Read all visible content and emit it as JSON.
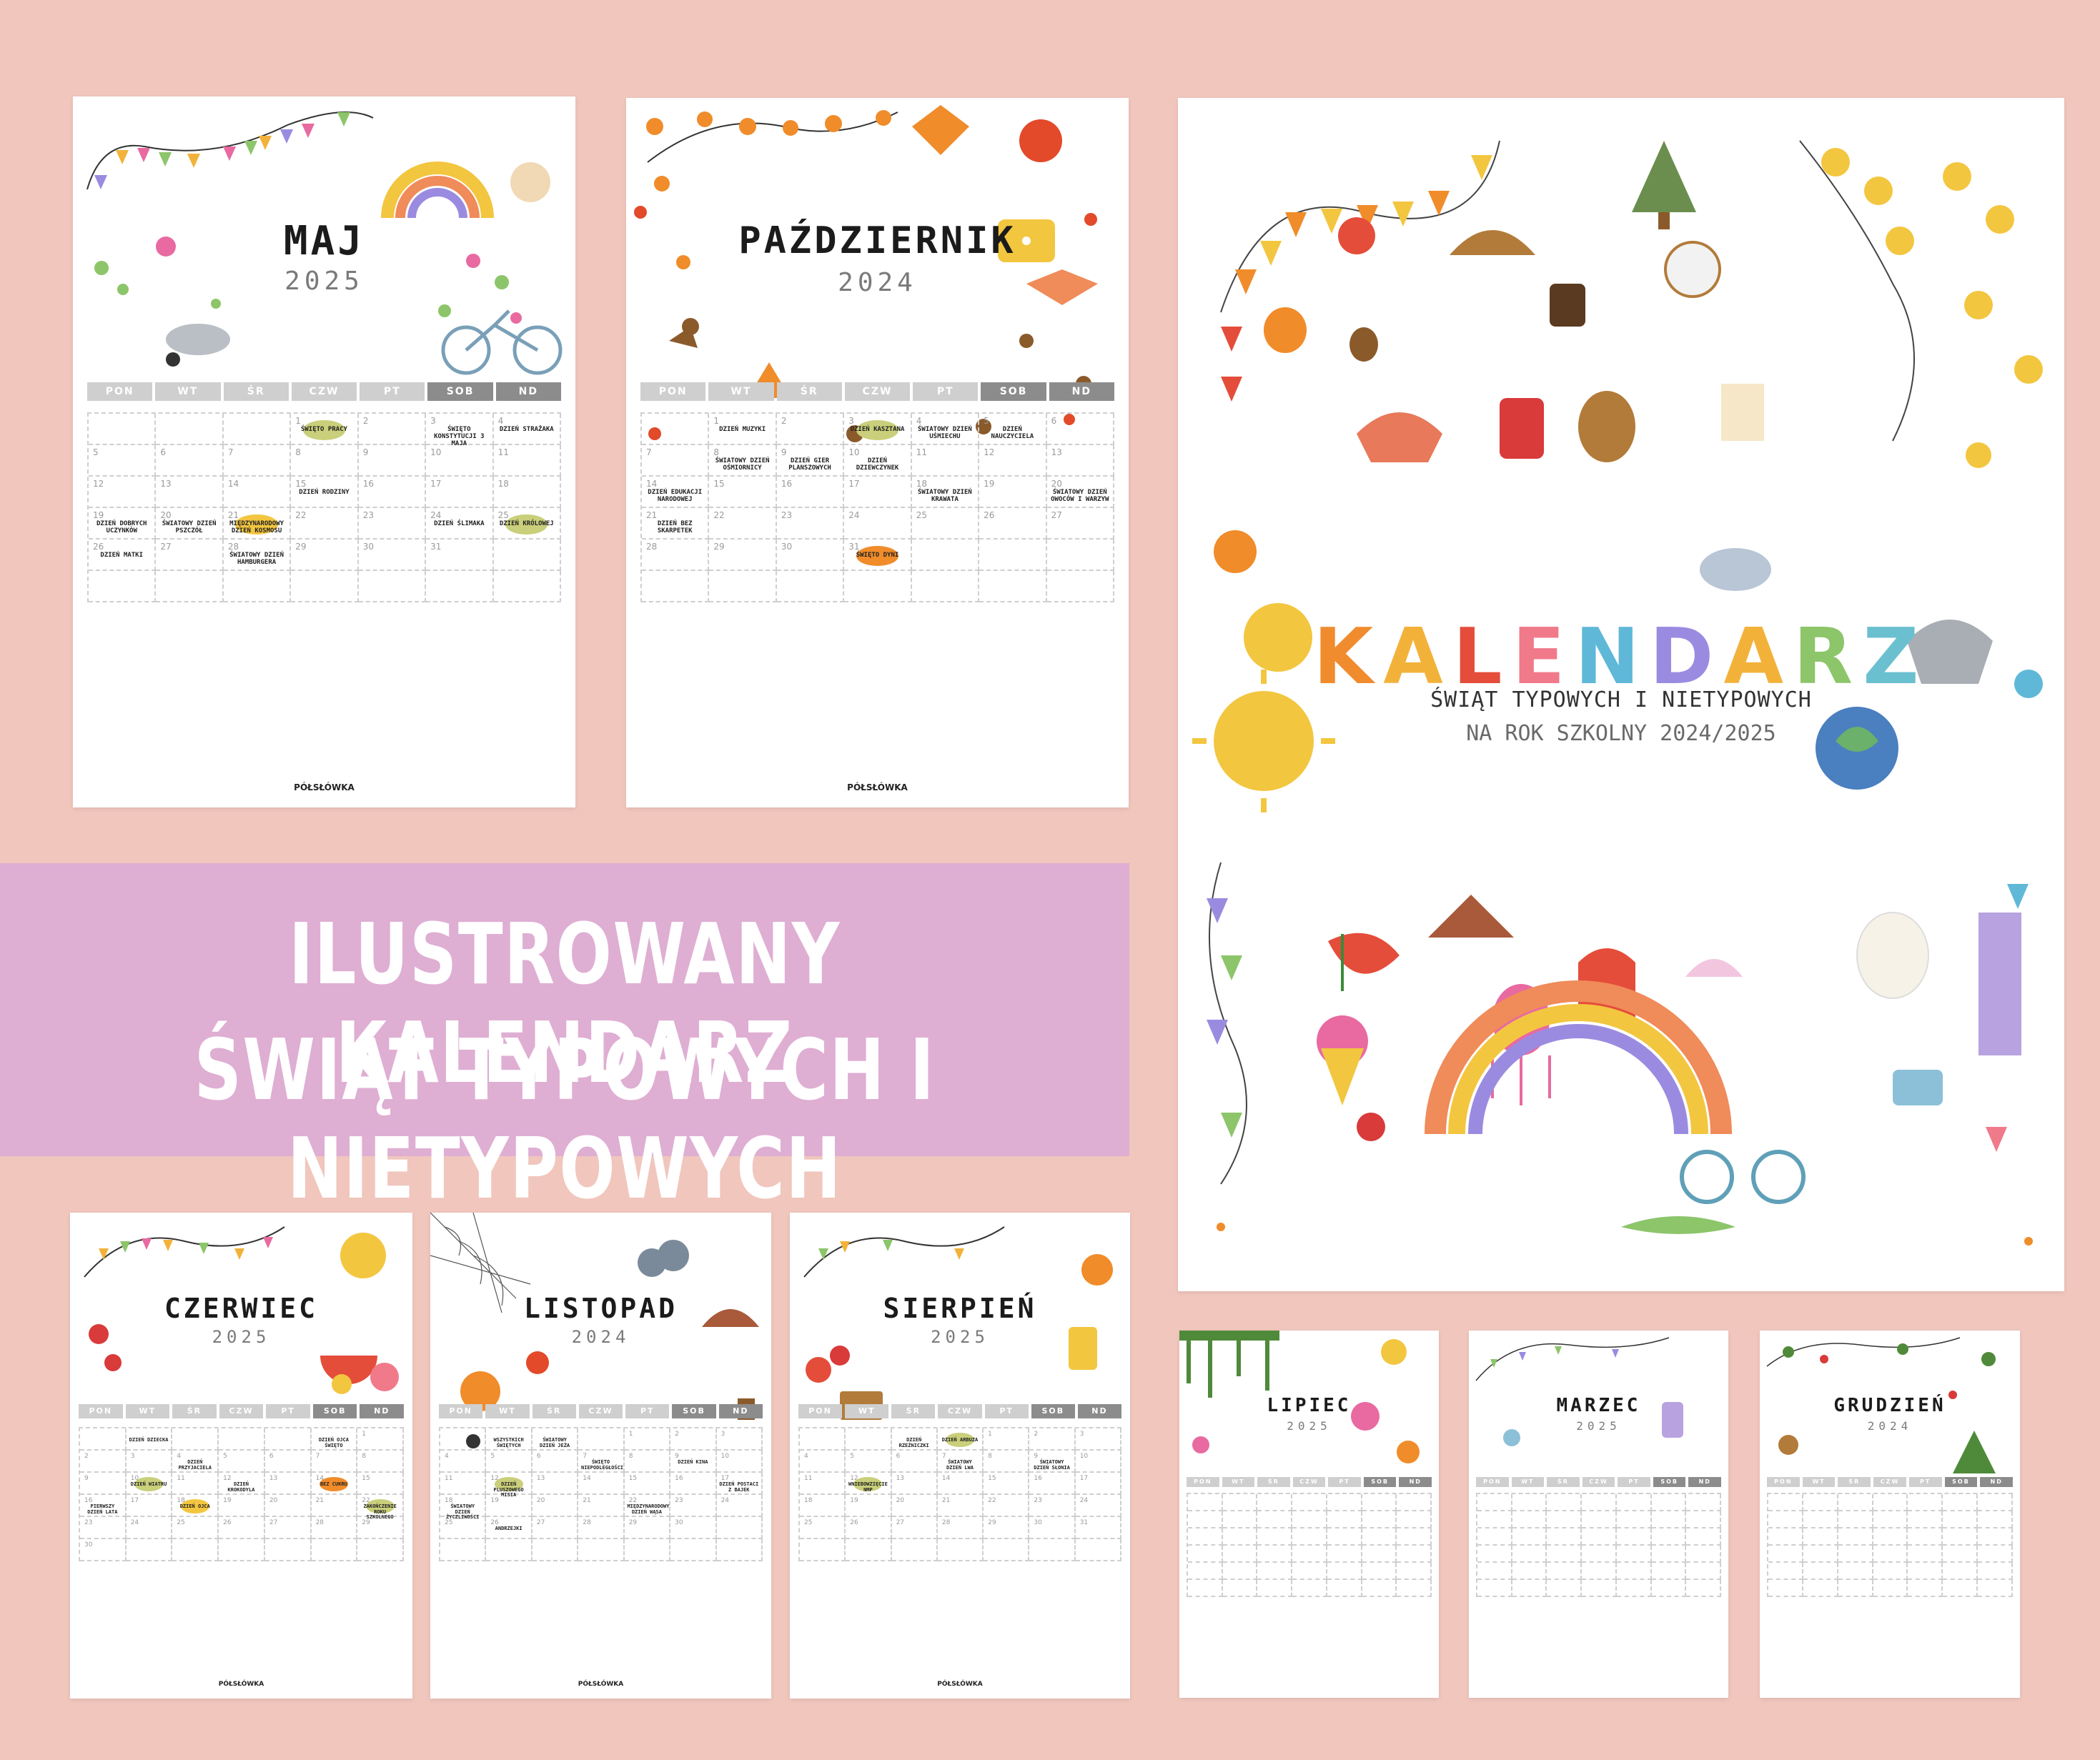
{
  "banner": {
    "line1": "ILUSTROWANY KALENDARZ",
    "line2": "ŚWIĄT TYPOWYCH I NIETYPOWYCH"
  },
  "cover": {
    "title_letters": [
      "K",
      "A",
      "L",
      "E",
      "N",
      "D",
      "A",
      "R",
      "Z"
    ],
    "title_colors": [
      "#f08b2e",
      "#f2b23a",
      "#e44d3a",
      "#f07a8a",
      "#5fb8d8",
      "#9b8be0",
      "#f2b23a",
      "#8cc56a",
      "#6bc0d0"
    ],
    "subtitle": "ŚWIĄT TYPOWYCH I NIETYPOWYCH",
    "subtitle2": "NA ROK SZKOLNY 2024/2025"
  },
  "weekdays": [
    "PON",
    "WT",
    "ŚR",
    "CZW",
    "PT",
    "SOB",
    "ND"
  ],
  "brand": "PÓŁSŁÓWKA",
  "pages": {
    "maj": {
      "title": "MAJ",
      "year": "2025",
      "days": [
        "",
        "",
        "",
        "1",
        "2",
        "3",
        "4",
        "5",
        "6",
        "7",
        "8",
        "9",
        "10",
        "11",
        "12",
        "13",
        "14",
        "15",
        "16",
        "17",
        "18",
        "19",
        "20",
        "21",
        "22",
        "23",
        "24",
        "25",
        "26",
        "27",
        "28",
        "29",
        "30",
        "31",
        "",
        ""
      ],
      "events": {
        "3": "ŚWIĘTO PRACY",
        "5": "ŚWIĘTO KONSTYTUCJI 3 MAJA",
        "6": "DZIEŃ STRAŻAKA",
        "17": "DZIEŃ RODZINY",
        "21": "DZIEŃ DOBRYCH UCZYNKÓW",
        "22": "ŚWIATOWY DZIEŃ PSZCZÓŁ",
        "23": "MIĘDZYNARODOWY DZIEŃ KOSMOSU",
        "26": "DZIEŃ ŚLIMAKA",
        "27": "DZIEŃ KRÓLOWEJ",
        "28": "DZIEŃ MATKI",
        "30": "ŚWIATOWY DZIEŃ HAMBURGERA"
      }
    },
    "pazdziernik": {
      "title": "PAŹDZIERNIK",
      "year": "2024",
      "days": [
        "",
        "1",
        "2",
        "3",
        "4",
        "5",
        "6",
        "7",
        "8",
        "9",
        "10",
        "11",
        "12",
        "13",
        "14",
        "15",
        "16",
        "17",
        "18",
        "19",
        "20",
        "21",
        "22",
        "23",
        "24",
        "25",
        "26",
        "27",
        "28",
        "29",
        "30",
        "31",
        "",
        "",
        "",
        ""
      ],
      "events": {
        "1": "DZIEŃ MUZYKI",
        "3": "DZIEŃ KASZTANA",
        "4": "ŚWIATOWY DZIEŃ UŚMIECHU",
        "5": "DZIEŃ NAUCZYCIELA",
        "8": "ŚWIATOWY DZIEŃ OŚMIORNICY",
        "9": "DZIEŃ GIER PLANSZOWYCH",
        "10": "DZIEŃ DZIEWCZYNEK",
        "14": "DZIEŃ EDUKACJI NARODOWEJ",
        "18": "ŚWIATOWY DZIEŃ KRAWATA",
        "20": "ŚWIATOWY DZIEŃ OWOCÓW I WARZYW",
        "21": "DZIEŃ BEZ SKARPETEK",
        "31": "ŚWIĘTO DYNI"
      }
    },
    "czerwiec": {
      "title": "CZERWIEC",
      "year": "2025",
      "days": [
        "",
        "",
        "",
        "",
        "",
        "",
        "1",
        "2",
        "3",
        "4",
        "5",
        "6",
        "7",
        "8",
        "9",
        "10",
        "11",
        "12",
        "13",
        "14",
        "15",
        "16",
        "17",
        "18",
        "19",
        "20",
        "21",
        "22",
        "23",
        "24",
        "25",
        "26",
        "27",
        "28",
        "29",
        "30",
        ""
      ],
      "events": {
        "1": "DZIEŃ DZIECKA",
        "5": "DZIEŃ OJCA ŚWIĘTO",
        "9": "DZIEŃ PRZYJACIELA",
        "15": "DZIEŃ WIATRU",
        "17": "DZIEŃ KROKODYLA",
        "19": "BEZ CUKRU",
        "21": "PIERWSZY DZIEŃ LATA",
        "23": "DZIEŃ OJCA",
        "27": "ZAKOŃCZENIE ROKU SZKOLNEGO"
      }
    },
    "listopad": {
      "title": "LISTOPAD",
      "year": "2024",
      "days": [
        "",
        "",
        "",
        "",
        "1",
        "2",
        "3",
        "4",
        "5",
        "6",
        "7",
        "8",
        "9",
        "10",
        "11",
        "12",
        "13",
        "14",
        "15",
        "16",
        "17",
        "18",
        "19",
        "20",
        "21",
        "22",
        "23",
        "24",
        "25",
        "26",
        "27",
        "28",
        "29",
        "30",
        "",
        "",
        ""
      ],
      "events": {
        "1": "WSZYSTKICH ŚWIĘTYCH",
        "2": "ŚWIATOWY DZIEŃ JEŻA",
        "10": "ŚWIĘTO NIEPODLEGŁOŚCI",
        "12": "DZIEŃ KINA",
        "15": "DZIEŃ PLUSZOWEGO MISIA",
        "20": "DZIEŃ POSTACI Z BAJEK",
        "21": "ŚWIATOWY DZIEŃ ŻYCZLIWOŚCI",
        "25": "MIĘDZYNARODOWY DZIEŃ WĄSA",
        "29": "ANDRZEJKI"
      }
    },
    "sierpien": {
      "title": "SIERPIEŃ",
      "year": "2025",
      "days": [
        "",
        "",
        "",
        "",
        "1",
        "2",
        "3",
        "4",
        "5",
        "6",
        "7",
        "8",
        "9",
        "10",
        "11",
        "12",
        "13",
        "14",
        "15",
        "16",
        "17",
        "18",
        "19",
        "20",
        "21",
        "22",
        "23",
        "24",
        "25",
        "26",
        "27",
        "28",
        "29",
        "30",
        "31",
        "",
        ""
      ],
      "events": {
        "2": "DZIEŃ RZEŹNICZKI",
        "3": "DZIEŃ ARBUZA",
        "10": "ŚWIATOWY DZIEŃ LWA",
        "12": "ŚWIATOWY DZIEŃ SŁONIA",
        "15": "WNIEBOWZIĘCIE NMP"
      }
    },
    "lipiec": {
      "title": "LIPIEC",
      "year": "2025"
    },
    "marzec": {
      "title": "MARZEC",
      "year": "2025"
    },
    "grudzien": {
      "title": "GRUDZIEŃ",
      "year": "2024"
    }
  },
  "palette": {
    "bg": "#f0c6bd",
    "banner": "#dfaed3",
    "header_light": "#cfcfcf",
    "header_dark": "#8c8c8c",
    "blob_green": "#c9cf7a",
    "blob_orange": "#f08c2a",
    "blob_yellow": "#f3c640"
  }
}
